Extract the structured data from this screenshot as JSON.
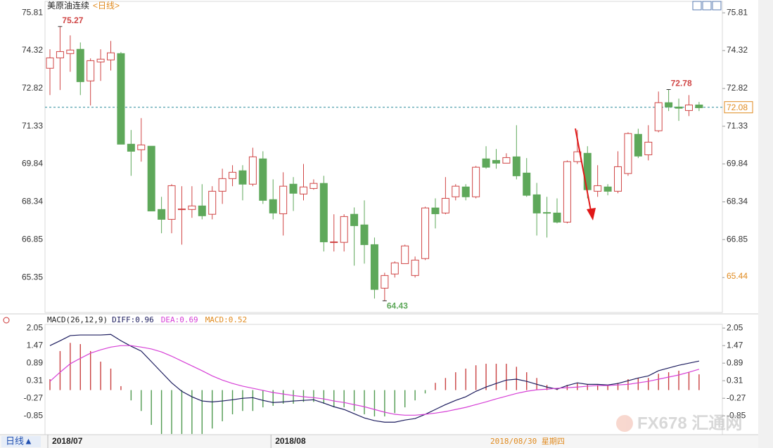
{
  "chart_data": [
    {
      "type": "candlestick",
      "title": "美原油连续",
      "subtitle": "<日线>",
      "ylim": [
        64.2,
        76.04
      ],
      "yticks": [
        75.81,
        74.32,
        72.82,
        71.33,
        69.84,
        68.34,
        66.85,
        65.35
      ],
      "up_color": "#d04545",
      "down_color": "#5ea85a",
      "last_price": 72.08,
      "last_price_color": "#e08a1e",
      "marker_price": 65.44,
      "categories": [
        "2018/07",
        null,
        null,
        null,
        null,
        null,
        null,
        null,
        null,
        null,
        null,
        null,
        null,
        null,
        null,
        null,
        null,
        null,
        null,
        null,
        null,
        null,
        "2018/08",
        null,
        null,
        null,
        null,
        null,
        null,
        null,
        null,
        null,
        null,
        null,
        null,
        null,
        null,
        null,
        null,
        null,
        null,
        null,
        null,
        null,
        null,
        null,
        null,
        null,
        null,
        null,
        null,
        null,
        null,
        null,
        null,
        null,
        null,
        null,
        null,
        null,
        null,
        null,
        null,
        null,
        null
      ],
      "open": [
        73.62,
        74.03,
        74.2,
        74.37,
        73.12,
        73.87,
        73.95,
        74.2,
        70.62,
        70.4,
        70.54,
        68.04,
        67.65,
        68.04,
        68.04,
        68.18,
        67.85,
        68.76,
        69.26,
        69.57,
        69.04,
        70.04,
        68.43,
        67.87,
        69.04,
        68.65,
        68.87,
        69.07,
        66.74,
        66.74,
        67.85,
        67.43,
        66.65,
        64.93,
        65.49,
        65.9,
        65.43,
        66.1,
        68.1,
        67.9,
        68.54,
        68.93,
        68.54,
        70.04,
        69.98,
        69.87,
        70.12,
        69.48,
        68.62,
        67.92,
        67.9,
        67.54,
        69.93,
        70.26,
        68.76,
        68.93,
        68.76,
        69.46,
        71.01,
        70.2,
        71.15,
        72.26,
        72.09,
        71.95,
        72.17
      ],
      "high": [
        74.37,
        75.27,
        74.92,
        74.64,
        74.01,
        74.37,
        74.7,
        74.26,
        71.18,
        71.65,
        70.54,
        68.54,
        69.04,
        68.96,
        68.96,
        69.04,
        68.96,
        69.65,
        69.79,
        69.79,
        70.48,
        70.34,
        69.23,
        69.51,
        69.32,
        69.84,
        69.23,
        69.37,
        67.85,
        67.85,
        68.12,
        68.4,
        66.93,
        65.54,
        65.99,
        66.65,
        66.18,
        68.15,
        68.48,
        69.32,
        69.04,
        69.04,
        69.76,
        70.54,
        70.43,
        70.26,
        71.37,
        70.07,
        69.09,
        68.54,
        68.48,
        69.98,
        71.18,
        70.54,
        69.79,
        69.04,
        70.34,
        71.09,
        71.23,
        71.37,
        72.7,
        72.78,
        72.42,
        72.56,
        72.29
      ],
      "low": [
        72.56,
        72.76,
        73.48,
        72.56,
        72.15,
        73.12,
        73.53,
        70.62,
        69.37,
        69.93,
        67.98,
        67.1,
        67.1,
        66.65,
        67.71,
        67.65,
        67.65,
        68.26,
        68.96,
        68.4,
        68.96,
        68.26,
        67.65,
        67.01,
        67.98,
        68.4,
        68.82,
        66.38,
        66.38,
        66.38,
        65.82,
        65.9,
        64.52,
        64.43,
        65.35,
        65.9,
        65.35,
        66.04,
        67.29,
        67.85,
        68.4,
        68.4,
        68.48,
        69.65,
        69.65,
        69.87,
        69.23,
        68.54,
        67.01,
        66.93,
        67.49,
        67.49,
        69.84,
        68.48,
        68.54,
        68.6,
        68.68,
        69.37,
        70.07,
        69.98,
        71.09,
        71.93,
        71.54,
        71.73,
        71.93
      ],
      "close": [
        74.03,
        74.28,
        74.34,
        73.09,
        73.92,
        73.98,
        74.23,
        70.62,
        70.34,
        70.59,
        67.98,
        67.65,
        68.98,
        68.06,
        68.18,
        67.79,
        68.76,
        69.26,
        69.51,
        69.04,
        70.12,
        68.4,
        67.9,
        68.96,
        68.68,
        68.93,
        69.07,
        66.76,
        66.76,
        67.76,
        67.4,
        66.65,
        64.88,
        65.43,
        65.93,
        66.6,
        66.04,
        68.1,
        67.87,
        68.48,
        68.96,
        68.54,
        69.71,
        69.71,
        69.87,
        70.09,
        69.37,
        68.6,
        67.9,
        67.9,
        67.54,
        69.93,
        70.32,
        68.82,
        68.98,
        68.76,
        69.73,
        71.04,
        70.15,
        70.7,
        72.26,
        72.09,
        72.04,
        72.17,
        72.06
      ],
      "high_labels": [
        null,
        "75.27",
        null,
        null,
        null,
        null,
        null,
        null,
        null,
        null,
        null,
        null,
        null,
        null,
        null,
        null,
        null,
        null,
        null,
        null,
        null,
        null,
        null,
        null,
        null,
        null,
        null,
        null,
        null,
        null,
        null,
        null,
        null,
        null,
        null,
        null,
        null,
        null,
        null,
        null,
        null,
        null,
        null,
        null,
        null,
        null,
        null,
        null,
        null,
        null,
        null,
        null,
        null,
        null,
        null,
        null,
        null,
        null,
        null,
        null,
        null,
        "72.78",
        null,
        null,
        null
      ],
      "low_labels": [
        null,
        null,
        null,
        null,
        null,
        null,
        null,
        null,
        null,
        null,
        null,
        null,
        null,
        null,
        null,
        null,
        null,
        null,
        null,
        null,
        null,
        null,
        null,
        null,
        null,
        null,
        null,
        null,
        null,
        null,
        null,
        null,
        null,
        "64.43",
        null,
        null,
        null,
        null,
        null,
        null,
        null,
        null,
        null,
        null,
        null,
        null,
        null,
        null,
        null,
        null,
        null,
        null,
        null,
        null,
        null,
        null,
        null,
        null,
        null,
        null,
        null,
        null,
        null,
        null,
        null
      ]
    },
    {
      "type": "macd",
      "title": "MACD(26,12,9)",
      "ylim": [
        -1.5,
        2.17
      ],
      "yticks": [
        2.05,
        1.47,
        0.89,
        0.31,
        -0.27,
        -0.85
      ],
      "series": [
        {
          "name": "DIFF:0.96",
          "kind": "line",
          "color": "#1c1c5e",
          "values": [
            1.47,
            1.63,
            1.8,
            1.82,
            1.82,
            1.82,
            1.84,
            1.63,
            1.45,
            1.29,
            0.94,
            0.59,
            0.24,
            -0.04,
            -0.22,
            -0.36,
            -0.39,
            -0.36,
            -0.32,
            -0.27,
            -0.25,
            -0.34,
            -0.41,
            -0.39,
            -0.36,
            -0.34,
            -0.32,
            -0.43,
            -0.55,
            -0.64,
            -0.78,
            -0.92,
            -1.01,
            -1.06,
            -1.06,
            -0.99,
            -0.94,
            -0.8,
            -0.64,
            -0.48,
            -0.34,
            -0.22,
            -0.04,
            0.1,
            0.22,
            0.33,
            0.36,
            0.29,
            0.19,
            0.1,
            0.03,
            0.15,
            0.24,
            0.19,
            0.19,
            0.17,
            0.22,
            0.31,
            0.4,
            0.47,
            0.64,
            0.73,
            0.82,
            0.89,
            0.96
          ]
        },
        {
          "name": "DEA:0.69",
          "kind": "line",
          "color": "#d63fd6",
          "values": [
            0.29,
            0.59,
            0.87,
            1.05,
            1.22,
            1.33,
            1.42,
            1.47,
            1.47,
            1.42,
            1.36,
            1.26,
            1.12,
            0.96,
            0.8,
            0.64,
            0.47,
            0.33,
            0.22,
            0.13,
            0.06,
            -0.01,
            -0.08,
            -0.13,
            -0.18,
            -0.22,
            -0.25,
            -0.29,
            -0.36,
            -0.41,
            -0.48,
            -0.55,
            -0.64,
            -0.73,
            -0.8,
            -0.83,
            -0.83,
            -0.8,
            -0.76,
            -0.71,
            -0.64,
            -0.57,
            -0.48,
            -0.39,
            -0.29,
            -0.2,
            -0.11,
            -0.04,
            0.01,
            0.03,
            0.06,
            0.08,
            0.1,
            0.13,
            0.15,
            0.15,
            0.17,
            0.19,
            0.24,
            0.29,
            0.36,
            0.43,
            0.5,
            0.59,
            0.69
          ]
        },
        {
          "name": "MACD:0.52",
          "kind": "bar",
          "color": "#e08a1e",
          "up_color": "#c94040",
          "down_color": "#4f9a4f",
          "values": [
            0.36,
            1.29,
            1.56,
            1.52,
            1.29,
            0.94,
            0.71,
            0.13,
            -0.34,
            -0.69,
            -1.15,
            -1.45,
            -1.45,
            -1.45,
            -1.45,
            -1.45,
            -1.27,
            -1.03,
            -0.8,
            -0.69,
            -0.69,
            -0.57,
            -0.52,
            -0.45,
            -0.45,
            -0.39,
            -0.39,
            -0.45,
            -0.57,
            -0.57,
            -0.69,
            -0.8,
            -0.87,
            -0.87,
            -0.76,
            -0.57,
            -0.34,
            -0.11,
            0.24,
            0.4,
            0.59,
            0.71,
            0.82,
            0.87,
            0.87,
            0.87,
            0.77,
            0.59,
            0.4,
            0.17,
            0.06,
            0.17,
            0.24,
            0.19,
            0.17,
            0.17,
            0.24,
            0.36,
            0.4,
            0.4,
            0.54,
            0.59,
            0.64,
            0.59,
            0.52
          ]
        }
      ]
    }
  ],
  "ui": {
    "period_button": "日线▲",
    "cursor_date": "2018/08/30 星期四",
    "watermark": "FX678 汇通网"
  }
}
